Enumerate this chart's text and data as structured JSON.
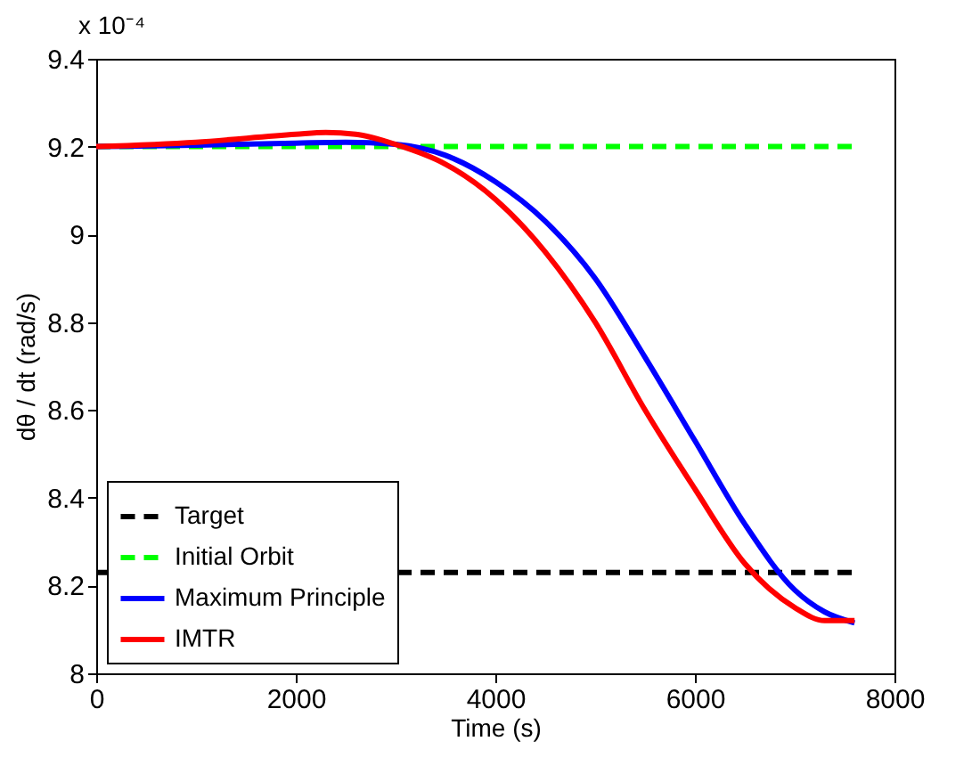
{
  "chart_data": {
    "type": "line",
    "xlabel": "Time (s)",
    "ylabel": "dθ / dt (rad/s)",
    "annotations": [
      "x 10⁻⁴"
    ],
    "xlim": [
      0,
      8000
    ],
    "xticks": [
      0,
      2000,
      4000,
      6000,
      8000
    ],
    "ylim": [
      8,
      9.4
    ],
    "yticks": [
      8,
      8.2,
      8.4,
      8.6,
      8.8,
      9,
      9.2,
      9.4
    ],
    "grid": false,
    "legend": "bottom left",
    "series": [
      {
        "name": "Target",
        "color": "#000000",
        "line_style": "dashed",
        "x": [
          0,
          7600
        ],
        "values": [
          8.23,
          8.23
        ]
      },
      {
        "name": "Initial Orbit",
        "color": "#00ff00",
        "line_style": "dashed",
        "x": [
          0,
          7600
        ],
        "values": [
          9.2,
          9.2
        ]
      },
      {
        "name": "Maximum Principle",
        "color": "#0000ff",
        "line_style": "solid",
        "x": [
          0,
          1000,
          2000,
          2500,
          3000,
          3500,
          4000,
          4500,
          5000,
          5500,
          6000,
          6500,
          7000,
          7300,
          7600
        ],
        "values": [
          9.2,
          9.203,
          9.208,
          9.21,
          9.205,
          9.18,
          9.12,
          9.03,
          8.9,
          8.72,
          8.53,
          8.34,
          8.19,
          8.14,
          8.115
        ]
      },
      {
        "name": "IMTR",
        "color": "#ff0000",
        "line_style": "solid",
        "x": [
          0,
          1000,
          2000,
          2300,
          2600,
          3000,
          3500,
          4000,
          4500,
          5000,
          5500,
          6000,
          6500,
          7000,
          7300,
          7600
        ],
        "values": [
          9.2,
          9.21,
          9.228,
          9.232,
          9.228,
          9.205,
          9.16,
          9.08,
          8.96,
          8.8,
          8.6,
          8.42,
          8.25,
          8.15,
          8.12,
          8.12
        ]
      }
    ]
  }
}
